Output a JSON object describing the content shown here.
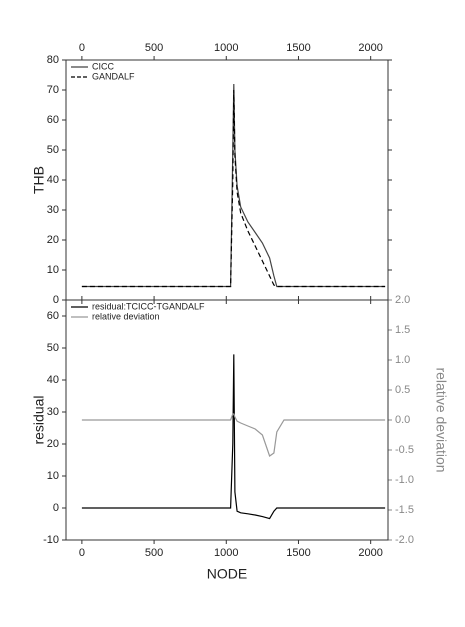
{
  "chart_data": [
    {
      "type": "line",
      "ylabel": "THB",
      "x": [
        0,
        1000,
        1030,
        1045,
        1052,
        1060,
        1075,
        1100,
        1150,
        1200,
        1250,
        1300,
        1330,
        1350,
        1400,
        2100
      ],
      "series": [
        {
          "name": "CICC",
          "color": "#444444",
          "style": "solid",
          "values": [
            4.5,
            4.5,
            4.5,
            50,
            72,
            50,
            38,
            31,
            26,
            22.5,
            19,
            14,
            8,
            4.5,
            4.5,
            4.5
          ]
        },
        {
          "name": "GANDALF",
          "color": "#000000",
          "style": "dashed",
          "values": [
            4.5,
            4.5,
            4.5,
            40,
            70,
            48,
            36,
            29,
            23,
            18,
            13,
            8,
            5,
            4.5,
            4.5,
            4.5
          ]
        }
      ],
      "xlim": [
        -110,
        2120
      ],
      "xticks": [
        0,
        500,
        1000,
        1500,
        2000
      ],
      "xtick_side": "top",
      "ylim": [
        0,
        80
      ],
      "yticks": [
        0,
        10,
        20,
        30,
        40,
        50,
        60,
        70,
        80
      ],
      "legend": "upper left"
    },
    {
      "type": "line",
      "xlabel": "NODE",
      "ylabel": "residual",
      "y2label": "relative deviation",
      "x": [
        0,
        1000,
        1030,
        1045,
        1052,
        1060,
        1075,
        1100,
        1150,
        1200,
        1250,
        1300,
        1330,
        1350,
        1400,
        2100
      ],
      "series": [
        {
          "name": "residual:TCICC-TGANDALF",
          "color": "#000000",
          "style": "solid",
          "values": [
            0,
            0,
            0,
            20,
            48,
            5,
            -1,
            -1.5,
            -1.8,
            -2.2,
            -2.7,
            -3.3,
            -1,
            0,
            0,
            0
          ]
        },
        {
          "name": "relative deviation",
          "color": "#999999",
          "style": "solid",
          "axis": "y2",
          "values": [
            0,
            0,
            0,
            0.1,
            0.1,
            0.05,
            -0.02,
            -0.05,
            -0.1,
            -0.15,
            -0.25,
            -0.6,
            -0.55,
            -0.2,
            0,
            0
          ]
        }
      ],
      "xlim": [
        -110,
        2120
      ],
      "xticks": [
        0,
        500,
        1000,
        1500,
        2000
      ],
      "xtick_side": "bottom",
      "ylim": [
        -10,
        65
      ],
      "yticks": [
        -10,
        0,
        10,
        20,
        30,
        40,
        50,
        60
      ],
      "y2lim": [
        -2,
        2
      ],
      "y2ticks": [
        {
          "value": -2,
          "label": "-2.0"
        },
        {
          "value": -1.5,
          "label": "-1.5"
        },
        {
          "value": -1,
          "label": "-1.0"
        },
        {
          "value": -0.5,
          "label": "-0.5"
        },
        {
          "value": 0,
          "label": "0.0"
        },
        0.5,
        {
          "value": 1,
          "label": "1.0"
        },
        1.5,
        {
          "value": 2,
          "label": "2.0"
        }
      ],
      "y2color": "#888888",
      "legend": "upper left"
    }
  ]
}
